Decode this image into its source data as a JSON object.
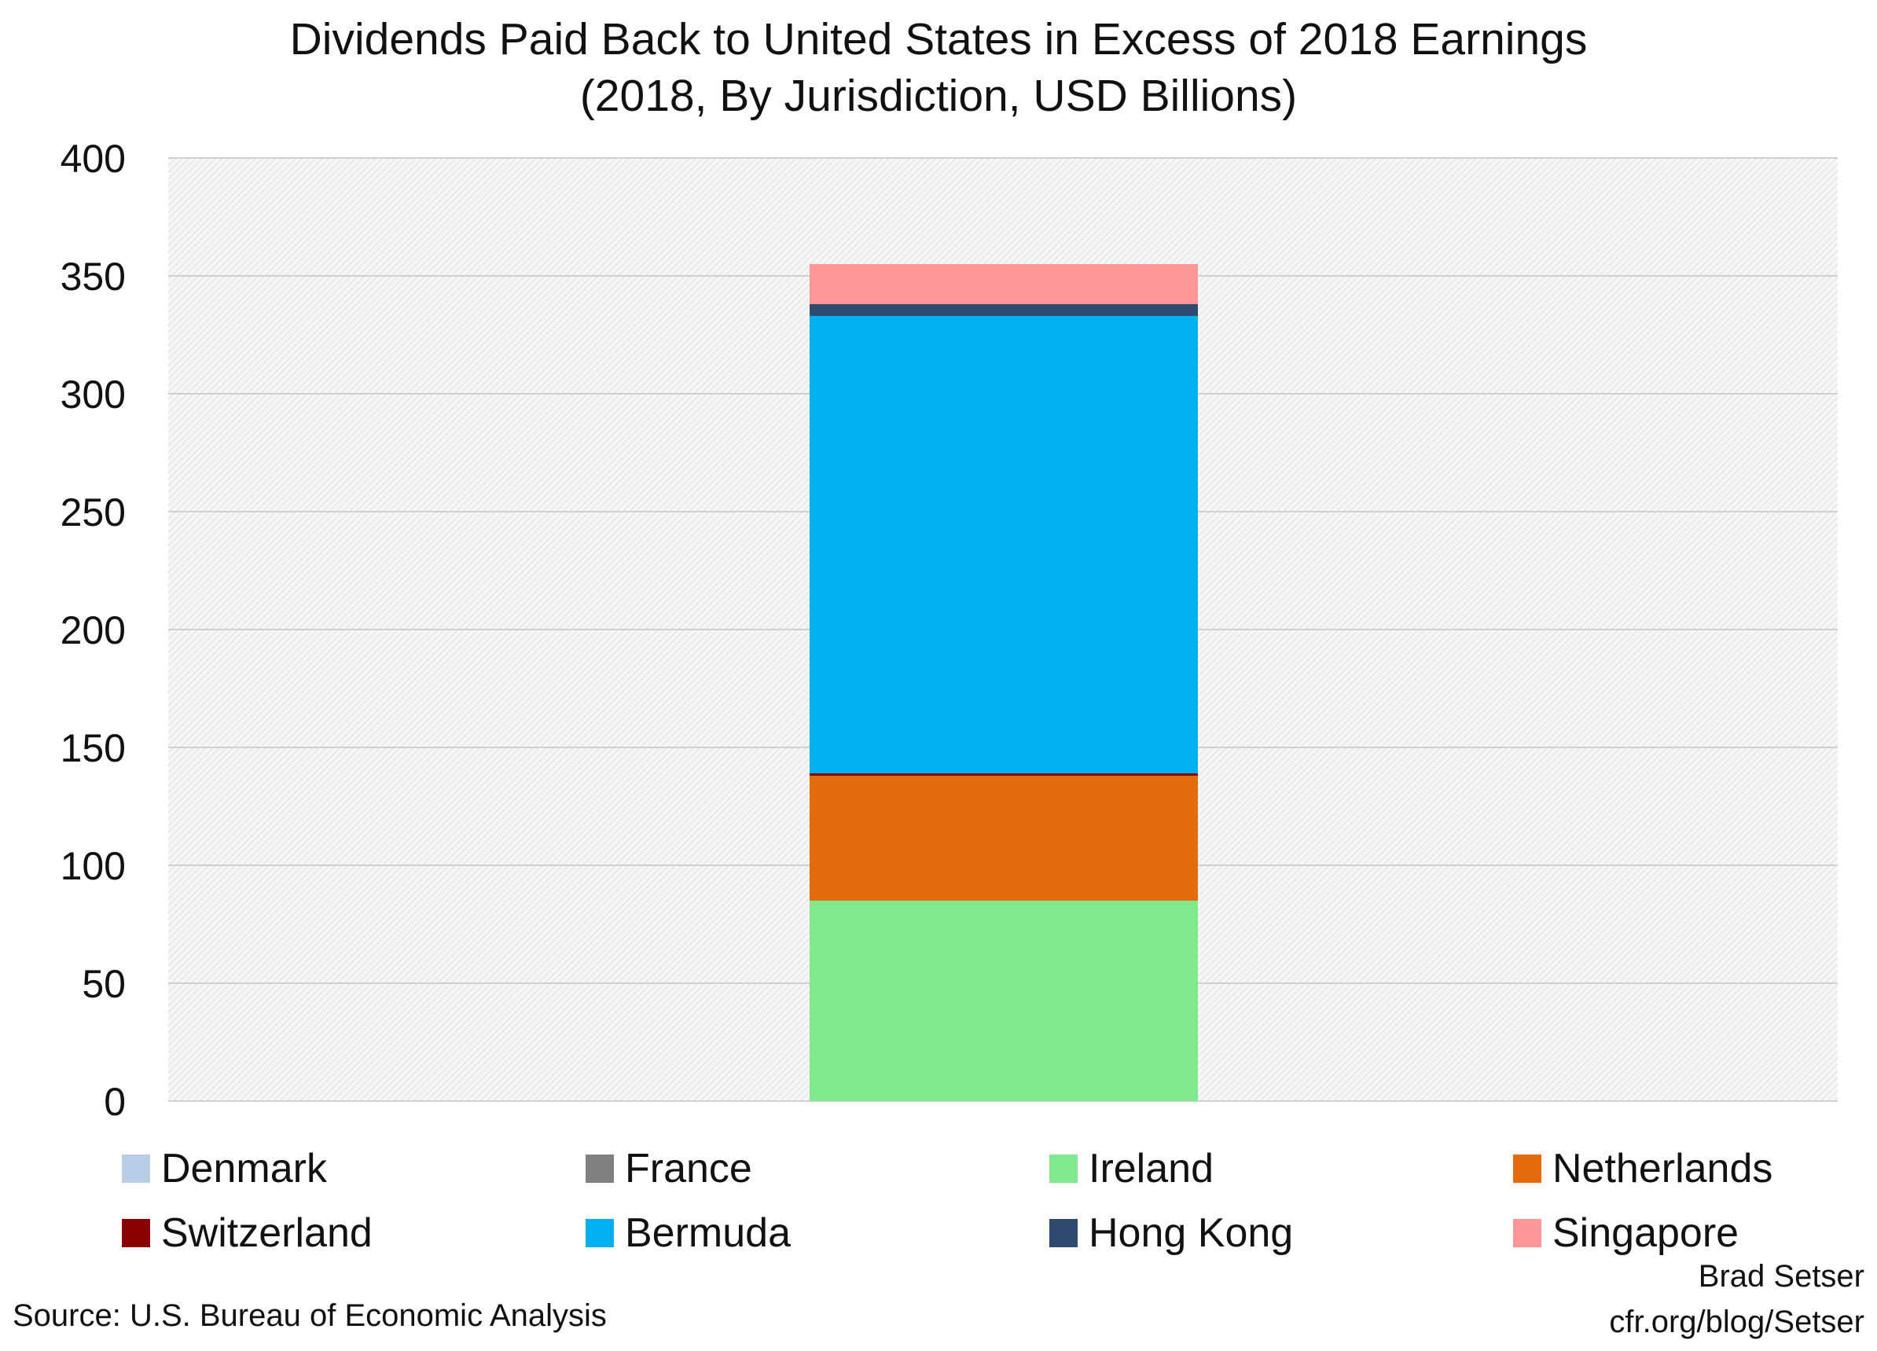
{
  "chart_data": {
    "type": "bar",
    "stacked": true,
    "title": "Dividends Paid Back to United States in Excess of 2018 Earnings",
    "subtitle": "(2018, By Jurisdiction, USD Billions)",
    "ylim": [
      0,
      400
    ],
    "yticks": [
      0,
      50,
      100,
      150,
      200,
      250,
      300,
      350,
      400
    ],
    "grid": true,
    "legend_position": "bottom",
    "series": [
      {
        "name": "Denmark",
        "value": 0,
        "color": "#b8cde6"
      },
      {
        "name": "France",
        "value": 0,
        "color": "#808080"
      },
      {
        "name": "Ireland",
        "value": 85,
        "color": "#80e98e"
      },
      {
        "name": "Netherlands",
        "value": 53,
        "color": "#e36c0a"
      },
      {
        "name": "Switzerland",
        "value": 1,
        "color": "#8b0000"
      },
      {
        "name": "Bermuda",
        "value": 194,
        "color": "#00b0f0"
      },
      {
        "name": "Hong Kong",
        "value": 5,
        "color": "#2e4a6e"
      },
      {
        "name": "Singapore",
        "value": 17,
        "color": "#ff9696"
      }
    ]
  },
  "footer": {
    "source": "Source: U.S. Bureau of Economic Analysis",
    "author": "Brad Setser",
    "url": "cfr.org/blog/Setser"
  }
}
